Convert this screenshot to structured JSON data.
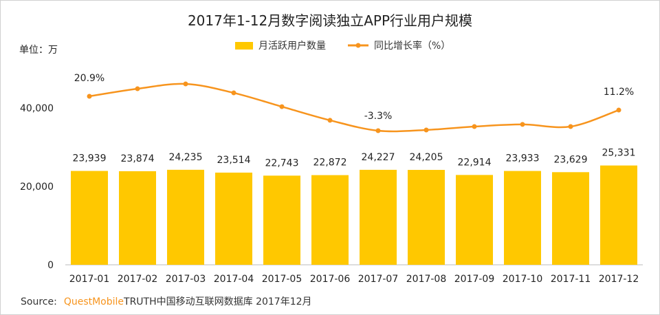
{
  "chart_data": {
    "type": "bar+line",
    "title": "2017年1-12月数字阅读独立APP行业用户规模",
    "ylabel": "单位：万",
    "ylim": [
      0,
      60000
    ],
    "yticks": [
      "0",
      "20,000",
      "40,000"
    ],
    "categories": [
      "2017-01",
      "2017-02",
      "2017-03",
      "2017-04",
      "2017-05",
      "2017-06",
      "2017-07",
      "2017-08",
      "2017-09",
      "2017-10",
      "2017-11",
      "2017-12"
    ],
    "series": [
      {
        "name": "月活跃用户数量",
        "type": "bar",
        "color": "#FFC800",
        "values": [
          23939,
          23874,
          24235,
          23514,
          22743,
          22872,
          24227,
          24205,
          22914,
          23933,
          23629,
          25331
        ],
        "labels": [
          "23,939",
          "23,874",
          "24,235",
          "23,514",
          "22,743",
          "22,872",
          "24,227",
          "24,205",
          "22,914",
          "23,933",
          "23,629",
          "25,331"
        ]
      },
      {
        "name": "同比增长率（%）",
        "type": "line",
        "color": "#F7941D",
        "axis": "secondary-hidden",
        "values": [
          20.9,
          26.2,
          29.6,
          23.3,
          13.6,
          4.0,
          -3.3,
          -2.8,
          -0.4,
          1.1,
          -0.4,
          11.2
        ],
        "labels": [
          "20.9%",
          "",
          "",
          "",
          "",
          "",
          "-3.3%",
          "",
          "",
          "",
          "",
          "11.2%"
        ]
      }
    ],
    "grid": false,
    "legend": "top-center"
  },
  "source": {
    "prefix": "Source:",
    "brand": "QuestMobile",
    "text": "TRUTH中国移动互联网数据库 2017年12月"
  }
}
